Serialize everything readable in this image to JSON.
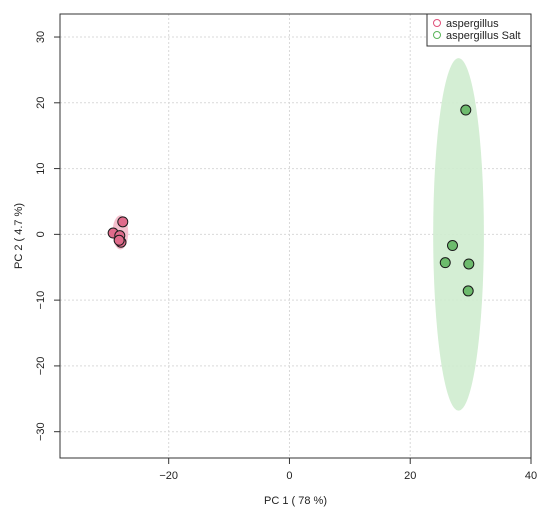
{
  "chart_data": {
    "type": "scatter",
    "title": "",
    "xlabel": "PC 1 ( 78 %)",
    "ylabel": "PC 2 ( 4.7 %)",
    "xlim": [
      -38,
      40
    ],
    "ylim": [
      -34,
      33.5
    ],
    "xticks": [
      -20,
      0,
      20,
      40
    ],
    "yticks": [
      -30,
      -20,
      -10,
      0,
      10,
      20,
      30
    ],
    "xtick_labels": [
      "−20",
      "0",
      "20",
      "40"
    ],
    "ytick_labels": [
      "−30",
      "−20",
      "−10",
      "0",
      "10",
      "20",
      "30"
    ],
    "grid": true,
    "legend_position": "top-right",
    "series": [
      {
        "name": "aspergillus",
        "color": "#e0507a",
        "fill": "#e06b8b",
        "ellipse_fill": "#f4b8c8",
        "ellipse": {
          "cx": -28,
          "cy": 0.3,
          "rx": 1.3,
          "ry": 2.6
        },
        "points": [
          {
            "x": -29.2,
            "y": 0.2
          },
          {
            "x": -28.1,
            "y": -0.2
          },
          {
            "x": -27.9,
            "y": -1.2
          },
          {
            "x": -27.6,
            "y": 1.9
          },
          {
            "x": -28.2,
            "y": -0.9
          }
        ]
      },
      {
        "name": "aspergillus Salt",
        "color": "#5ab55a",
        "fill": "#6dbb6d",
        "ellipse_fill": "#cfeccf",
        "ellipse": {
          "cx": 28,
          "cy": 0,
          "rx": 4.2,
          "ry": 26.8
        },
        "points": [
          {
            "x": 29.2,
            "y": 18.9
          },
          {
            "x": 27,
            "y": -1.7
          },
          {
            "x": 25.8,
            "y": -4.3
          },
          {
            "x": 29.7,
            "y": -4.5
          },
          {
            "x": 29.6,
            "y": -8.6
          }
        ]
      }
    ]
  }
}
